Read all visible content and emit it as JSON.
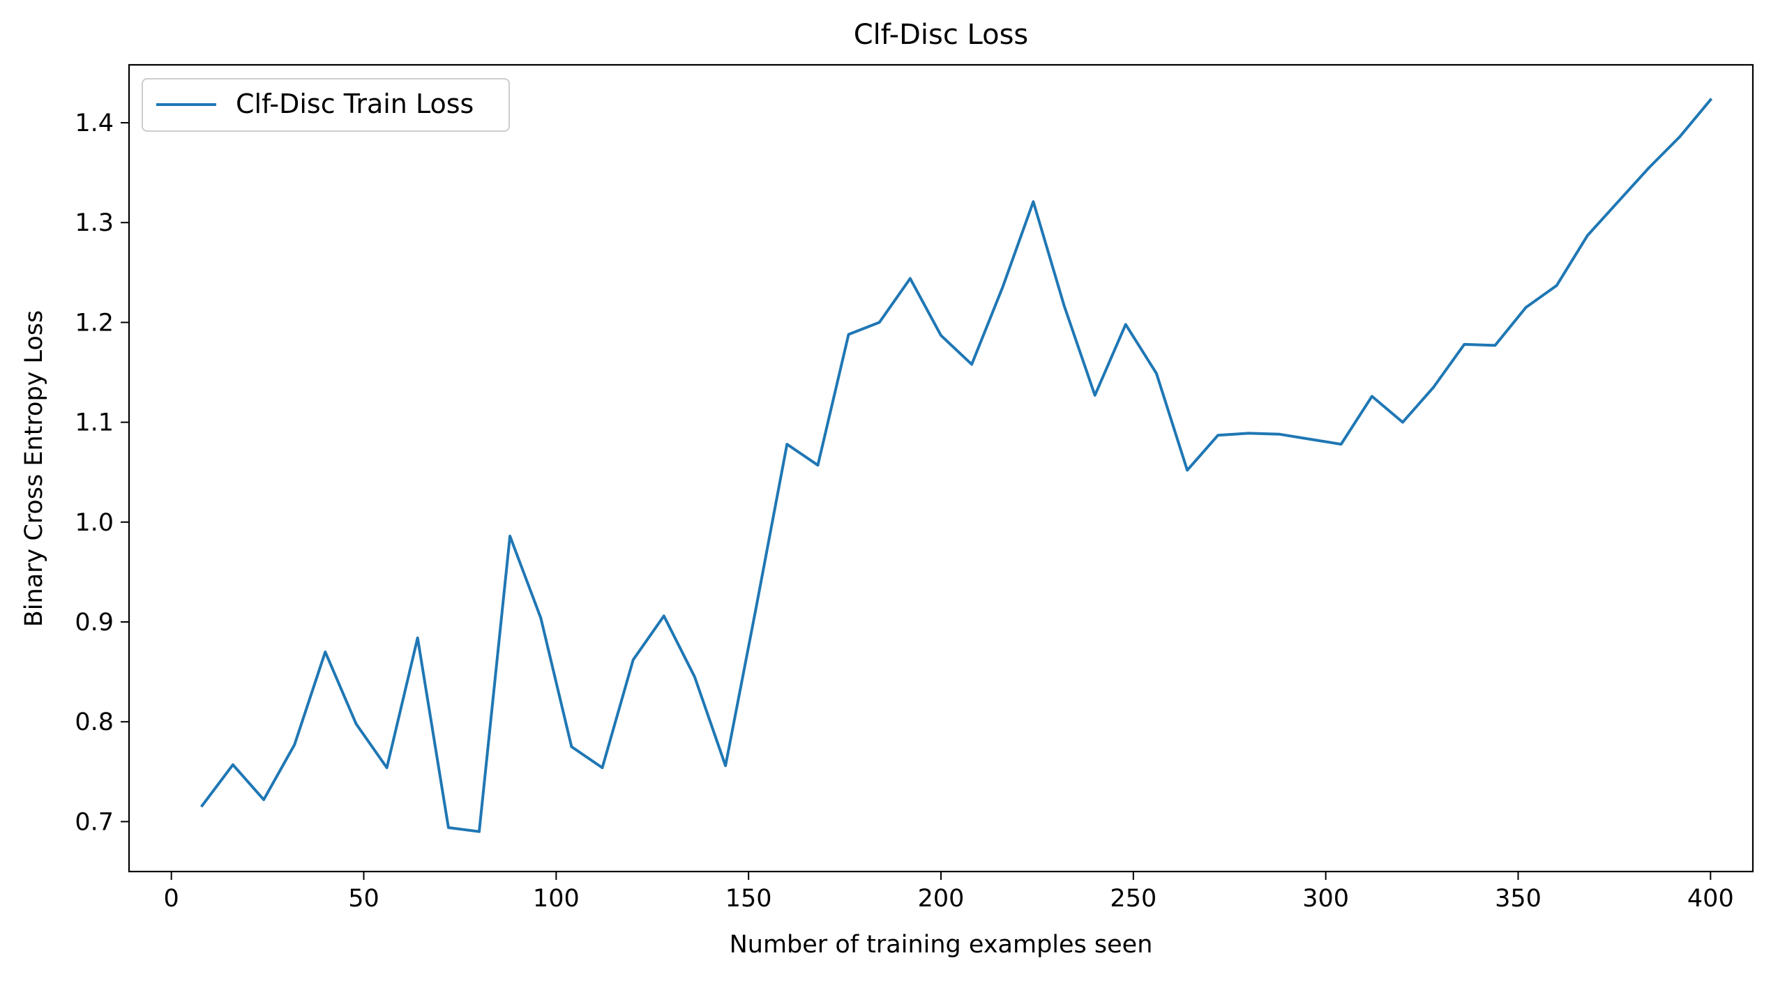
{
  "chart_data": {
    "type": "line",
    "title": "Clf-Disc Loss",
    "xlabel": "Number of training examples seen",
    "ylabel": "Binary Cross Entropy Loss",
    "xlim": [
      -11,
      411
    ],
    "ylim": [
      0.65,
      1.458
    ],
    "xticks": [
      0,
      50,
      100,
      150,
      200,
      250,
      300,
      350,
      400
    ],
    "yticks": [
      0.7,
      0.8,
      0.9,
      1.0,
      1.1,
      1.2,
      1.3,
      1.4
    ],
    "ytick_labels": [
      "0.7",
      "0.8",
      "0.9",
      "1.0",
      "1.1",
      "1.2",
      "1.3",
      "1.4"
    ],
    "grid": false,
    "legend": {
      "position": "top-left"
    },
    "series": [
      {
        "name": "Clf-Disc Train Loss",
        "color": "#1f77b4",
        "x": [
          8,
          16,
          24,
          32,
          40,
          48,
          56,
          64,
          72,
          80,
          88,
          96,
          104,
          112,
          120,
          128,
          136,
          144,
          152,
          160,
          168,
          176,
          184,
          192,
          200,
          208,
          216,
          224,
          232,
          240,
          248,
          256,
          264,
          272,
          280,
          288,
          296,
          304,
          312,
          320,
          328,
          336,
          344,
          352,
          360,
          368,
          376,
          384,
          392,
          400
        ],
        "y": [
          0.716,
          0.757,
          0.722,
          0.777,
          0.87,
          0.798,
          0.754,
          0.884,
          0.694,
          0.69,
          0.986,
          0.904,
          0.775,
          0.754,
          0.862,
          0.906,
          0.845,
          0.756,
          0.915,
          1.078,
          1.057,
          1.188,
          1.2,
          1.244,
          1.187,
          1.158,
          1.235,
          1.321,
          1.217,
          1.127,
          1.198,
          1.149,
          1.052,
          1.087,
          1.089,
          1.088,
          1.083,
          1.078,
          1.126,
          1.1,
          1.135,
          1.178,
          1.177,
          1.215,
          1.237,
          1.287,
          1.321,
          1.355,
          1.386,
          1.423
        ]
      }
    ]
  }
}
